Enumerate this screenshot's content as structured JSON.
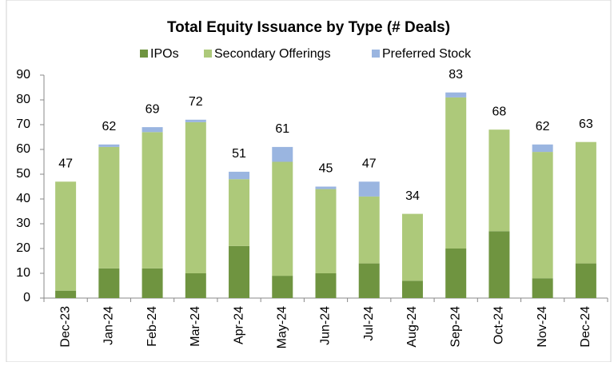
{
  "chart_data": {
    "type": "stacked_bar",
    "title": "Total Equity Issuance by Type (# Deals)",
    "categories": [
      "Dec-23",
      "Jan-24",
      "Feb-24",
      "Mar-24",
      "Apr-24",
      "May-24",
      "Jun-24",
      "Jul-24",
      "Aug-24",
      "Sep-24",
      "Oct-24",
      "Nov-24",
      "Dec-24"
    ],
    "series": [
      {
        "name": "IPOs",
        "color": "#6f9440",
        "values": [
          3,
          12,
          12,
          10,
          21,
          9,
          10,
          14,
          7,
          20,
          27,
          8,
          14
        ]
      },
      {
        "name": "Secondary Offerings",
        "color": "#adc97a",
        "values": [
          44,
          49,
          55,
          61,
          27,
          46,
          34,
          27,
          27,
          61,
          41,
          51,
          49
        ]
      },
      {
        "name": "Preferred Stock",
        "color": "#9ab5e0",
        "values": [
          0,
          1,
          2,
          1,
          3,
          6,
          1,
          6,
          0,
          2,
          0,
          3,
          0
        ]
      }
    ],
    "totals": [
      47,
      62,
      69,
      72,
      51,
      61,
      45,
      47,
      34,
      83,
      68,
      62,
      63
    ],
    "ylim": [
      0,
      90
    ],
    "yticks": [
      0,
      10,
      20,
      30,
      40,
      50,
      60,
      70,
      80,
      90
    ],
    "grid": false,
    "legend": "top"
  }
}
